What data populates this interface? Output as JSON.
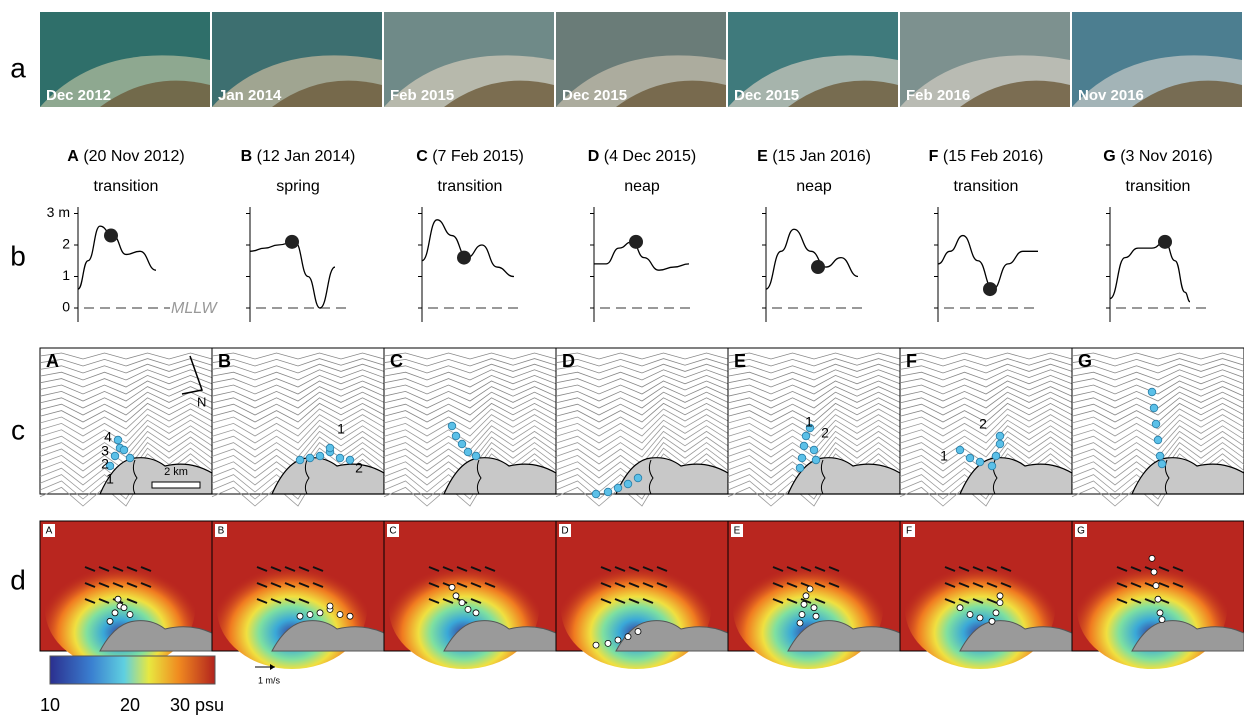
{
  "row_labels": [
    "a",
    "b",
    "c",
    "d"
  ],
  "panels": [
    {
      "letter": "A",
      "photo_label": "Dec 2012",
      "date": "(20 Nov 2012)",
      "tide": "transition",
      "track_labels": [
        "1",
        "2",
        "3",
        "4"
      ]
    },
    {
      "letter": "B",
      "photo_label": "Jan 2014",
      "date": "(12 Jan 2014)",
      "tide": "spring",
      "track_labels": [
        "1",
        "2"
      ]
    },
    {
      "letter": "C",
      "photo_label": "Feb 2015",
      "date": "(7 Feb 2015)",
      "tide": "transition",
      "track_labels": []
    },
    {
      "letter": "D",
      "photo_label": "Dec 2015",
      "date": "(4 Dec 2015)",
      "tide": "neap",
      "track_labels": []
    },
    {
      "letter": "E",
      "photo_label": "Dec 2015",
      "date": "(15 Jan 2016)",
      "tide": "neap",
      "track_labels": [
        "1",
        "2"
      ]
    },
    {
      "letter": "F",
      "photo_label": "Feb 2016",
      "date": "(15 Feb 2016)",
      "tide": "transition",
      "track_labels": [
        "1",
        "2"
      ]
    },
    {
      "letter": "G",
      "photo_label": "Nov 2016",
      "date": "(3 Nov 2016)",
      "tide": "transition",
      "track_labels": []
    }
  ],
  "tide_axis": {
    "ticks": [
      "3 m",
      "2",
      "1",
      "0"
    ],
    "datum": "MLLW"
  },
  "north": "N",
  "scale_bar": "2 km",
  "vector_scale": "1 m/s",
  "colorbar": {
    "labels": [
      "10",
      "20",
      "30 psu"
    ]
  }
}
